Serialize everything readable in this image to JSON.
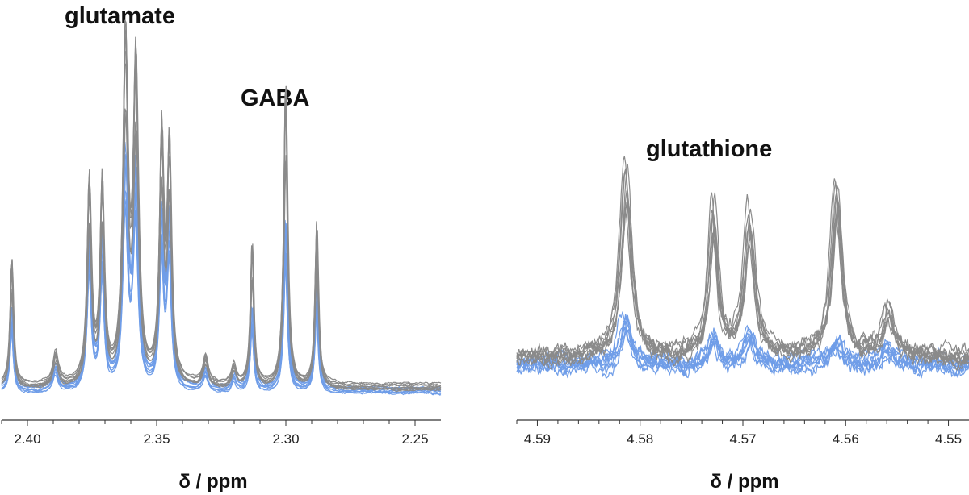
{
  "chart_data": [
    {
      "type": "line",
      "labels": [
        "glutamate",
        "GABA"
      ],
      "xlabel": "δ / ppm",
      "ylabel": "",
      "xlim": [
        2.41,
        2.24
      ],
      "x_reversed": true,
      "xticks": [
        "2.40",
        "2.35",
        "2.30",
        "2.25"
      ],
      "colors": {
        "gray_group": "#8a8a8a",
        "blue_group": "#6f9de8"
      },
      "baseline": {
        "gray_group": 0.03,
        "blue_group": 0.02
      },
      "peaks": [
        {
          "x": 2.406,
          "gray": 0.33,
          "blue": 0.22,
          "w": 0.0008
        },
        {
          "x": 2.389,
          "gray": 0.08,
          "blue": 0.06,
          "w": 0.0012
        },
        {
          "x": 2.376,
          "gray": 0.52,
          "blue": 0.4,
          "w": 0.001
        },
        {
          "x": 2.371,
          "gray": 0.51,
          "blue": 0.38,
          "w": 0.001
        },
        {
          "x": 2.362,
          "gray": 0.86,
          "blue": 0.59,
          "w": 0.0012
        },
        {
          "x": 2.358,
          "gray": 0.8,
          "blue": 0.55,
          "w": 0.0012
        },
        {
          "x": 2.348,
          "gray": 0.62,
          "blue": 0.44,
          "w": 0.001
        },
        {
          "x": 2.345,
          "gray": 0.59,
          "blue": 0.43,
          "w": 0.001
        },
        {
          "x": 2.331,
          "gray": 0.07,
          "blue": 0.05,
          "w": 0.0012
        },
        {
          "x": 2.32,
          "gray": 0.05,
          "blue": 0.04,
          "w": 0.001
        },
        {
          "x": 2.313,
          "gray": 0.37,
          "blue": 0.22,
          "w": 0.0008
        },
        {
          "x": 2.3,
          "gray": 0.78,
          "blue": 0.45,
          "w": 0.0009
        },
        {
          "x": 2.288,
          "gray": 0.42,
          "blue": 0.28,
          "w": 0.0008
        }
      ]
    },
    {
      "type": "line",
      "labels": [
        "glutathione"
      ],
      "xlabel": "δ / ppm",
      "ylabel": "",
      "xlim": [
        4.592,
        4.548
      ],
      "x_reversed": true,
      "xticks": [
        "4.59",
        "4.58",
        "4.57",
        "4.56",
        "4.55"
      ],
      "colors": {
        "gray_group": "#8a8a8a",
        "blue_group": "#6f9de8"
      },
      "baseline": {
        "gray_group": 0.12,
        "blue_group": 0.1
      },
      "peaks": [
        {
          "x": 4.5815,
          "gray": 0.55,
          "blue": 0.12,
          "w": 0.0006
        },
        {
          "x": 4.573,
          "gray": 0.44,
          "blue": 0.08,
          "w": 0.0005
        },
        {
          "x": 4.5695,
          "gray": 0.42,
          "blue": 0.09,
          "w": 0.0006
        },
        {
          "x": 4.561,
          "gray": 0.5,
          "blue": 0.07,
          "w": 0.0006
        },
        {
          "x": 4.556,
          "gray": 0.15,
          "blue": 0.05,
          "w": 0.0006
        }
      ]
    }
  ]
}
